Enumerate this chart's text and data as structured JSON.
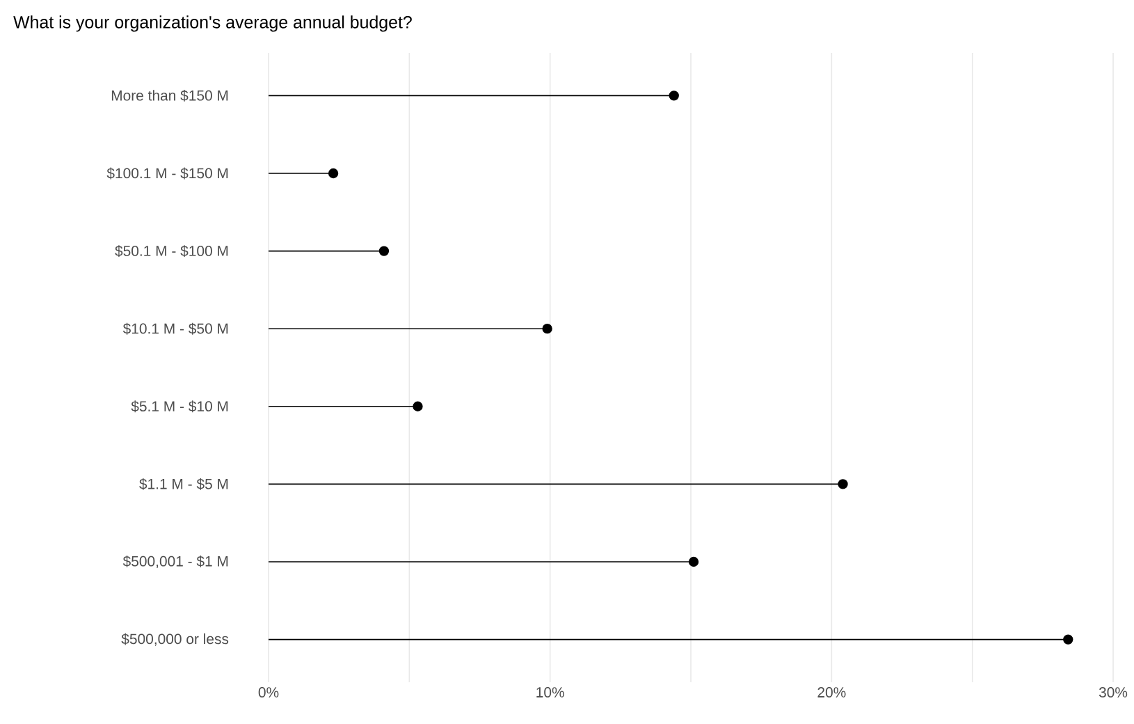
{
  "chart_data": {
    "type": "lollipop",
    "orientation": "horizontal",
    "title": "What is your organization's average annual budget?",
    "categories": [
      "More than $150 M",
      "$100.1 M - $150 M",
      "$50.1 M - $100 M",
      "$10.1 M - $50 M",
      "$5.1 M - $10 M",
      "$1.1 M - $5 M",
      "$500,001 - $1 M",
      "$500,000 or less"
    ],
    "values": [
      14.4,
      2.3,
      4.1,
      9.9,
      5.3,
      20.4,
      15.1,
      28.4
    ],
    "color": "#000000",
    "marker": "circle",
    "grid": "x",
    "xlim": [
      0,
      30
    ],
    "xticks": [
      {
        "value": 0,
        "label": "0%"
      },
      {
        "value": 5,
        "label": null
      },
      {
        "value": 10,
        "label": "10%"
      },
      {
        "value": 15,
        "label": null
      },
      {
        "value": 20,
        "label": "20%"
      },
      {
        "value": 25,
        "label": null
      },
      {
        "value": 30,
        "label": "30%"
      }
    ]
  }
}
